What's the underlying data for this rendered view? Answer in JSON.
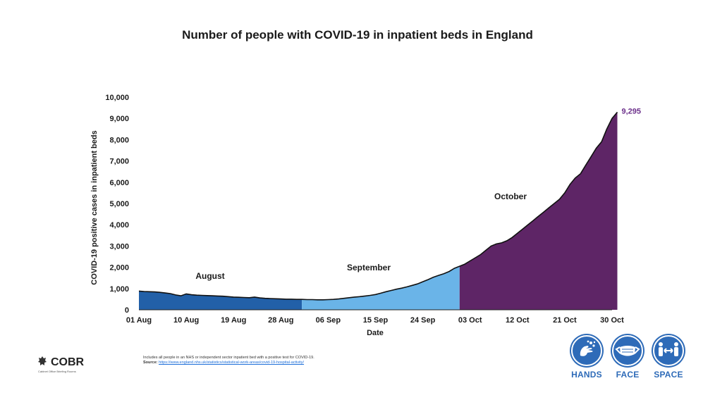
{
  "page": {
    "title": "Number of people with COVID-19 in inpatient beds in England",
    "note": "Includes all people in an NHS or independent sector inpatient bed with a positive test for COVID-19.",
    "source_label": "Source:",
    "source_url": "https://www.england.nhs.uk/statistics/statistical-work-areas/covid-19-hospital-activity/",
    "logo_text": "COBR",
    "logo_subtext": "Cabinet Office Briefing Rooms",
    "campaign": [
      {
        "label": "HANDS",
        "icon": "hands-wash-icon"
      },
      {
        "label": "FACE",
        "icon": "face-mask-icon"
      },
      {
        "label": "SPACE",
        "icon": "social-distance-icon"
      }
    ]
  },
  "colors": {
    "august": "#2260a8",
    "september": "#6ab4e8",
    "october": "#5e2566",
    "line": "#111111",
    "end_label": "#6b2f8a",
    "campaign_blue": "#2e6bb8"
  },
  "chart_data": {
    "type": "area",
    "title": "Number of people with COVID-19 in inpatient beds in England",
    "xlabel": "Date",
    "ylabel": "COVID-19 positive cases in inpatient beds",
    "ylim": [
      0,
      10000
    ],
    "yticks": [
      0,
      1000,
      2000,
      3000,
      4000,
      5000,
      6000,
      7000,
      8000,
      9000,
      10000
    ],
    "ytick_labels": [
      "0",
      "1,000",
      "2,000",
      "3,000",
      "4,000",
      "5,000",
      "6,000",
      "7,000",
      "8,000",
      "9,000",
      "10,000"
    ],
    "xtick_labels": [
      "01 Aug",
      "10 Aug",
      "19 Aug",
      "28 Aug",
      "06 Sep",
      "15 Sep",
      "24 Sep",
      "03 Oct",
      "12 Oct",
      "21 Oct",
      "30 Oct"
    ],
    "xtick_days": [
      1,
      10,
      19,
      28,
      37,
      46,
      55,
      64,
      73,
      82,
      91
    ],
    "grid": false,
    "series": [
      {
        "name": "August",
        "start_day": 1,
        "values": [
          880,
          860,
          850,
          840,
          820,
          790,
          760,
          700,
          660,
          750,
          710,
          690,
          680,
          670,
          660,
          650,
          640,
          620,
          600,
          590,
          580,
          570,
          600,
          560,
          540,
          530,
          520,
          510,
          500,
          500,
          490
        ]
      },
      {
        "name": "September",
        "start_day": 32,
        "values": [
          490,
          480,
          480,
          470,
          470,
          480,
          490,
          510,
          540,
          570,
          600,
          620,
          650,
          680,
          720,
          780,
          850,
          910,
          970,
          1020,
          1080,
          1150,
          1220,
          1320,
          1420,
          1530,
          1620,
          1700,
          1800,
          1950
        ]
      },
      {
        "name": "October",
        "start_day": 62,
        "values": [
          2050,
          2150,
          2300,
          2450,
          2600,
          2800,
          3000,
          3100,
          3150,
          3250,
          3400,
          3600,
          3800,
          4000,
          4200,
          4400,
          4600,
          4800,
          5000,
          5200,
          5500,
          5900,
          6200,
          6400,
          6800,
          7200,
          7600,
          7900,
          8500,
          9000,
          9295
        ]
      }
    ],
    "end_label": "9,295"
  }
}
